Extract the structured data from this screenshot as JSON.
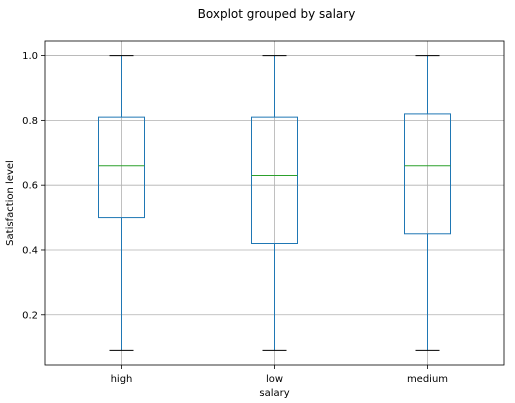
{
  "chart_data": {
    "type": "box",
    "title": "Boxplot grouped by salary",
    "xlabel": "salary",
    "ylabel": "Satisfaction level",
    "categories": [
      "high",
      "low",
      "medium"
    ],
    "boxes": [
      {
        "category": "high",
        "whisker_low": 0.09,
        "q1": 0.5,
        "median": 0.66,
        "q3": 0.81,
        "whisker_high": 1.0
      },
      {
        "category": "low",
        "whisker_low": 0.09,
        "q1": 0.42,
        "median": 0.63,
        "q3": 0.81,
        "whisker_high": 1.0
      },
      {
        "category": "medium",
        "whisker_low": 0.09,
        "q1": 0.45,
        "median": 0.66,
        "q3": 0.82,
        "whisker_high": 1.0
      }
    ],
    "ylim": [
      0.045,
      1.045
    ],
    "yticks": [
      {
        "value": 0.2,
        "label": "0.2"
      },
      {
        "value": 0.4,
        "label": "0.4"
      },
      {
        "value": 0.6,
        "label": "0.6"
      },
      {
        "value": 0.8,
        "label": "0.8"
      },
      {
        "value": 1.0,
        "label": "1.0"
      }
    ],
    "grid": true,
    "colors": {
      "box": "#1f77b4",
      "whisker": "#1f77b4",
      "cap": "#000000",
      "median": "#2ca02c",
      "grid": "#b0b0b0",
      "axes": "#000000"
    }
  }
}
